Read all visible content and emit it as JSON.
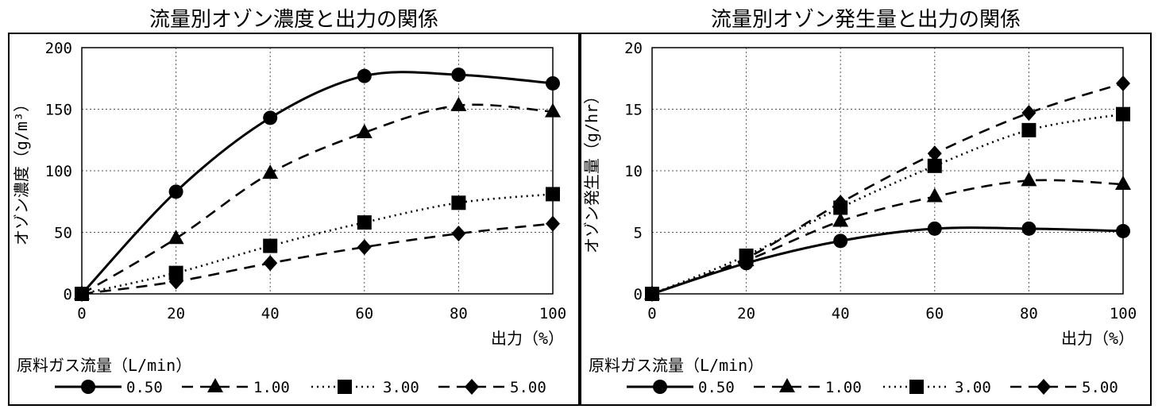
{
  "chart_data": [
    {
      "type": "line",
      "title": "流量別オゾン濃度と出力の関係",
      "xlabel": "出力（%）",
      "ylabel": "オゾン濃度（g/m³）",
      "x": [
        0,
        20,
        40,
        60,
        80,
        100
      ],
      "xlim": [
        0,
        100
      ],
      "ylim": [
        0,
        200
      ],
      "yticks": [
        0,
        50,
        100,
        150,
        200
      ],
      "grid": true,
      "legend_title": "原料ガス流量（L/min）",
      "legend_position": "bottom",
      "series": [
        {
          "name": "0.50",
          "marker": "circle",
          "dash": "solid",
          "values": [
            0,
            83,
            143,
            177,
            178,
            171
          ]
        },
        {
          "name": "1.00",
          "marker": "triangle",
          "dash": "dashed",
          "values": [
            0,
            45,
            98,
            131,
            153,
            148
          ]
        },
        {
          "name": "3.00",
          "marker": "square",
          "dash": "dotted",
          "values": [
            0,
            17,
            39,
            58,
            74,
            81
          ]
        },
        {
          "name": "5.00",
          "marker": "diamond",
          "dash": "dashed",
          "values": [
            0,
            10,
            25,
            38,
            49,
            57
          ]
        }
      ]
    },
    {
      "type": "line",
      "title": "流量別オゾン発生量と出力の関係",
      "xlabel": "出力（%）",
      "ylabel": "オゾン発生量（g/hr）",
      "x": [
        0,
        20,
        40,
        60,
        80,
        100
      ],
      "xlim": [
        0,
        100
      ],
      "ylim": [
        0,
        20
      ],
      "yticks": [
        0,
        5,
        10,
        15,
        20
      ],
      "grid": true,
      "legend_title": "原料ガス流量（L/min）",
      "legend_position": "bottom",
      "series": [
        {
          "name": "0.50",
          "marker": "circle",
          "dash": "solid",
          "values": [
            0,
            2.5,
            4.3,
            5.3,
            5.3,
            5.1
          ]
        },
        {
          "name": "1.00",
          "marker": "triangle",
          "dash": "dashed",
          "values": [
            0,
            2.7,
            5.9,
            7.9,
            9.2,
            8.9
          ]
        },
        {
          "name": "3.00",
          "marker": "square",
          "dash": "dotted",
          "values": [
            0,
            3.1,
            7.0,
            10.4,
            13.3,
            14.6
          ]
        },
        {
          "name": "5.00",
          "marker": "diamond",
          "dash": "dashed",
          "values": [
            0,
            2.9,
            7.4,
            11.4,
            14.7,
            17.1
          ]
        }
      ]
    }
  ]
}
